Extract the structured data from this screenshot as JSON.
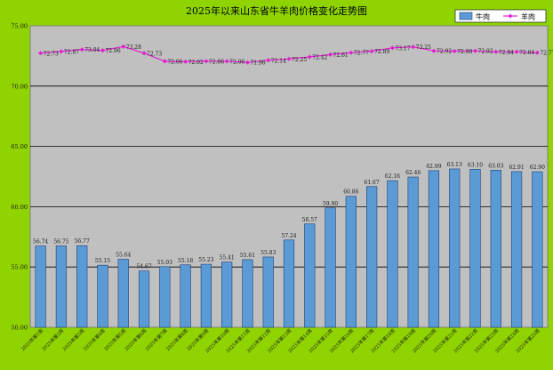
{
  "chart_data": {
    "type": "bar",
    "title": "2025年以来山东省牛羊肉价格变化走势图",
    "xlabel": "",
    "ylabel": "",
    "ylim": [
      50,
      75
    ],
    "y_ticks": [
      50,
      55,
      60,
      65,
      70,
      75
    ],
    "y_tick_labels": [
      "50.00",
      "55.00",
      "60.00",
      "65.00",
      "70.00",
      "75.00"
    ],
    "grid": true,
    "legend_position": "top-right",
    "categories": [
      "2025年第1周",
      "2025年第2周",
      "2025年第3周",
      "2025年第4周",
      "2025年第5周",
      "2025年第6周",
      "2025年第7周",
      "2025年第8周",
      "2025年第9周",
      "2025年第10周",
      "2025年第11周",
      "2025年第12周",
      "2025年第13周",
      "2025年第14周",
      "2025年第15周",
      "2025年第16周",
      "2025年第17周",
      "2025年第18周",
      "2025年第19周",
      "2025年第20周",
      "2025年第21周",
      "2025年第22周",
      "2025年第23周",
      "2025年第24周",
      "2025年第25周"
    ],
    "series": [
      {
        "name": "牛肉",
        "kind": "bar",
        "color": "#5b9bd5",
        "values": [
          56.74,
          56.75,
          56.77,
          55.15,
          55.64,
          54.67,
          55.03,
          55.18,
          55.23,
          55.41,
          55.61,
          55.83,
          57.24,
          58.57,
          59.9,
          60.86,
          61.67,
          62.16,
          62.46,
          62.99,
          63.13,
          63.1,
          63.03,
          62.91,
          62.9
        ],
        "labels": [
          "56.74",
          "56.75",
          "56.77",
          "55.15",
          "55.64",
          "54.67",
          "55.03",
          "55.18",
          "55.23",
          "55.41",
          "55.61",
          "55.83",
          "57.24",
          "58.57",
          "59.90",
          "60.86",
          "61.67",
          "62.16",
          "62.46",
          "62.99",
          "63.13",
          "63.10",
          "63.03",
          "62.91",
          "62.90"
        ]
      },
      {
        "name": "羊肉",
        "kind": "line",
        "color": "#e020d0",
        "values": [
          72.73,
          72.87,
          73.04,
          72.96,
          73.28,
          72.73,
          72.06,
          72.02,
          72.06,
          72.06,
          71.96,
          72.14,
          72.25,
          72.42,
          72.61,
          72.77,
          72.89,
          73.17,
          73.25,
          72.92,
          72.9,
          72.92,
          72.84,
          72.84,
          72.77
        ],
        "labels": [
          "72.73",
          "72.87",
          "73.04",
          "72.96",
          "73.28",
          "72.73",
          "72.06",
          "72.02",
          "72.06",
          "72.06",
          "71.96",
          "72.14",
          "72.25",
          "72.42",
          "72.61",
          "72.77",
          "72.89",
          "73.17",
          "73.25",
          "72.92",
          "72.90",
          "72.92",
          "72.84",
          "72.84",
          "72.77"
        ]
      }
    ]
  }
}
